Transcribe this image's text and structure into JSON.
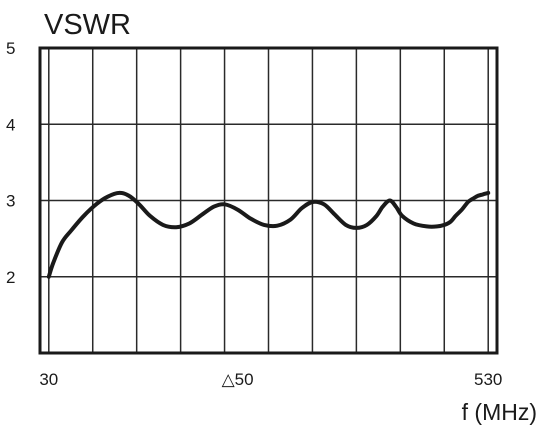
{
  "chart_data": {
    "type": "line",
    "title": "VSWR",
    "xlabel": "f (MHz)",
    "ylabel": "",
    "x_tick_labels": [
      "30",
      "△50",
      "530"
    ],
    "y_ticks": [
      2,
      3,
      4,
      5
    ],
    "ylim": [
      1,
      5
    ],
    "xlim": [
      20,
      540
    ],
    "grid": true,
    "x_gridlines": [
      30,
      80,
      130,
      180,
      230,
      280,
      330,
      380,
      430,
      480,
      530
    ],
    "series": [
      {
        "name": "",
        "x": [
          30,
          35,
          45,
          55,
          70,
          85,
          97,
          110,
          120,
          132,
          145,
          160,
          175,
          190,
          205,
          218,
          230,
          245,
          260,
          275,
          290,
          305,
          318,
          330,
          343,
          355,
          368,
          380,
          392,
          403,
          410,
          418,
          425,
          432,
          445,
          460,
          472,
          480,
          487,
          493,
          500,
          507,
          512,
          518,
          524,
          530
        ],
        "values": [
          2.0,
          2.18,
          2.45,
          2.6,
          2.8,
          2.96,
          3.05,
          3.1,
          3.07,
          2.96,
          2.8,
          2.68,
          2.65,
          2.7,
          2.82,
          2.92,
          2.95,
          2.88,
          2.76,
          2.68,
          2.67,
          2.75,
          2.9,
          2.98,
          2.95,
          2.82,
          2.68,
          2.64,
          2.68,
          2.8,
          2.92,
          3.0,
          2.92,
          2.8,
          2.7,
          2.66,
          2.66,
          2.68,
          2.72,
          2.8,
          2.88,
          2.98,
          3.02,
          3.06,
          3.08,
          3.1
        ]
      }
    ]
  }
}
